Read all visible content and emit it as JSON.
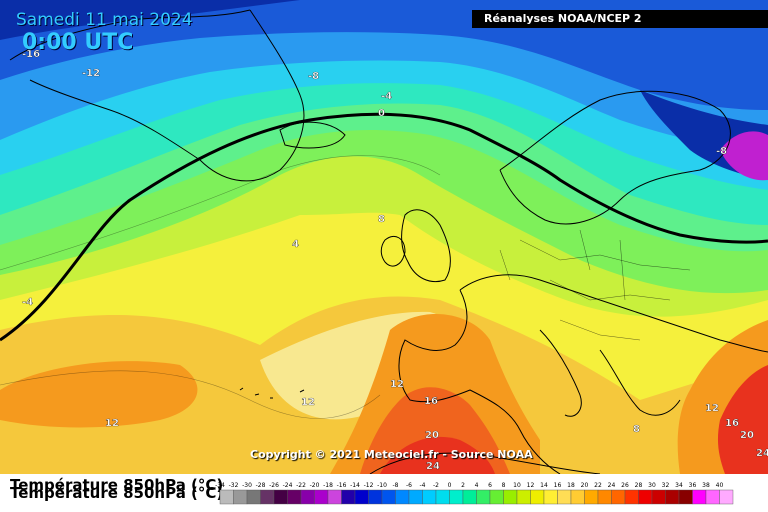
{
  "header": {
    "date": "Samedi 11 mai 2024",
    "time": "0:00 UTC",
    "source": "Réanalyses NOAA/NCEP 2"
  },
  "map": {
    "parameter": "Température 850hPa (°C)",
    "copyright": "Copyright © 2021 Meteociel.fr - Source NOAA",
    "contour_labels": [
      "-16",
      "-12",
      "-8",
      "-4",
      "0",
      "-8",
      "8",
      "4",
      "-4",
      "12",
      "12",
      "12",
      "16",
      "20",
      "24",
      "12",
      "16",
      "20",
      "24",
      "8"
    ],
    "colors": {
      "deep_blue": "#0a2ea8",
      "mid_blue": "#1a5ad8",
      "light_blue": "#2a9af0",
      "cyan": "#29d0f0",
      "teal": "#2ee8c0",
      "light_green": "#5ef08c",
      "green": "#7ef05a",
      "yellow_green": "#c8f03c",
      "yellow": "#f5f03c",
      "pale_yellow": "#f8e890",
      "orange_yellow": "#f5c83c",
      "orange": "#f59a1e",
      "red_orange": "#f0641e",
      "red": "#e8321e",
      "magenta": "#d81ec8"
    }
  },
  "legend": {
    "title": "Température 850hPa (°C)",
    "ticks": [
      "-34",
      "-32",
      "-30",
      "-28",
      "-26",
      "-24",
      "-22",
      "-20",
      "-18",
      "-16",
      "-14",
      "-12",
      "-10",
      "-8",
      "-6",
      "-4",
      "-2",
      "0",
      "2",
      "4",
      "6",
      "8",
      "10",
      "12",
      "14",
      "16",
      "18",
      "20",
      "22",
      "24",
      "26",
      "28",
      "30",
      "32",
      "34",
      "36",
      "38",
      "40"
    ],
    "swatch_colors": [
      "#bbbbbb",
      "#999999",
      "#777777",
      "#663366",
      "#440044",
      "#660066",
      "#8800aa",
      "#aa00cc",
      "#cc44dd",
      "#2200aa",
      "#0000cc",
      "#0033dd",
      "#0055ee",
      "#0088ff",
      "#00aaff",
      "#00ccff",
      "#00ddee",
      "#00eecc",
      "#00ee99",
      "#33ee66",
      "#66ee33",
      "#99ee00",
      "#ccee00",
      "#eeee00",
      "#ffee33",
      "#ffdd55",
      "#ffcc33",
      "#ffaa00",
      "#ff8800",
      "#ff6600",
      "#ff3300",
      "#ee0000",
      "#cc0000",
      "#aa0000",
      "#880000",
      "#ff00ff",
      "#ff66ff",
      "#ffaaff"
    ]
  }
}
